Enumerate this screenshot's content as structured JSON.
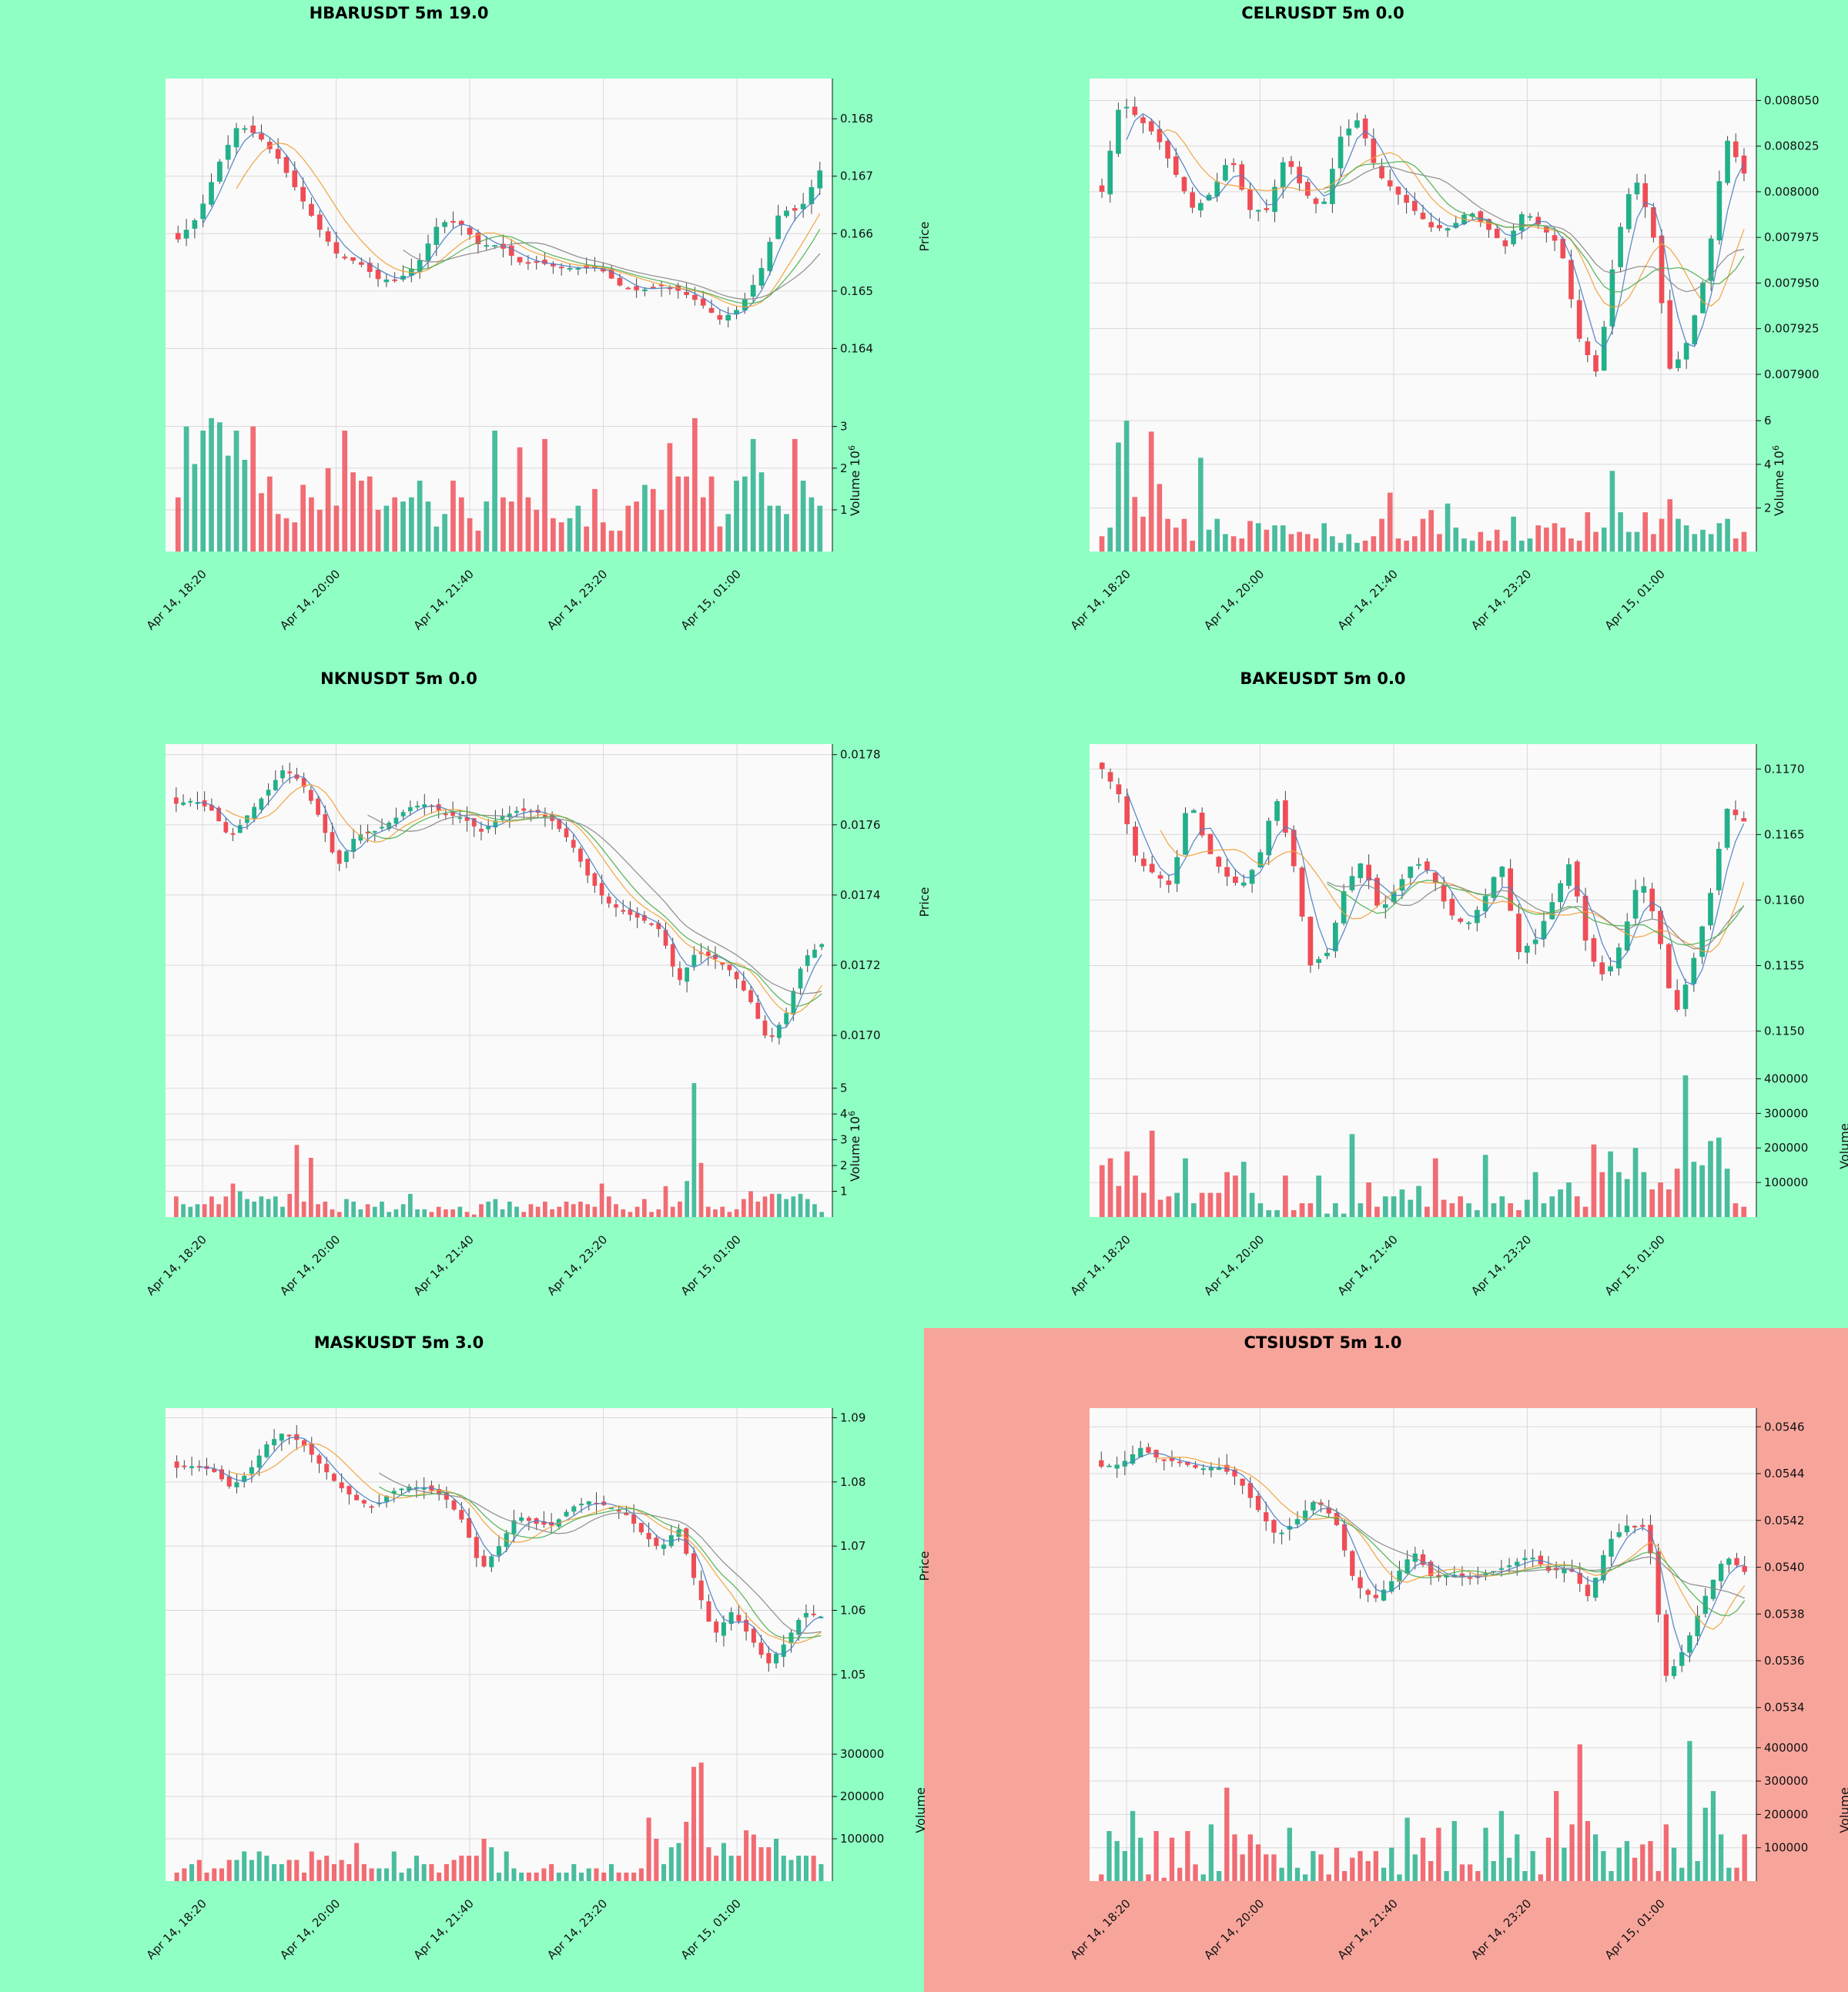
{
  "colors": {
    "page_bg": "#8fffc4",
    "highlight_bg": "#f7a59b",
    "panel_bg": "#fafafa",
    "up": "#22b08a",
    "down": "#ef4d56",
    "ma_short": "#4a7fc4",
    "ma_mid": "#f1a23b",
    "ma_long": "#888888",
    "ma_extra": "#4caf50",
    "grid": "#d9d9d9"
  },
  "x_ticks": [
    "Apr 14, 18:20",
    "Apr 14, 20:00",
    "Apr 14, 21:40",
    "Apr 14, 23:20",
    "Apr 15, 01:00"
  ],
  "labels": {
    "price": "Price",
    "volume": "Volume",
    "volume_exp": "10",
    "volume_exp_sup": "6"
  },
  "chart_data": [
    {
      "type": "candlestick",
      "title": "HBARUSDT 5m 19.0",
      "highlighted": false,
      "price_ticks": [
        "0.164",
        "0.165",
        "0.166",
        "0.167",
        "0.168"
      ],
      "price_range": [
        0.1632,
        0.1687
      ],
      "price_path": [
        0.1659,
        0.1663,
        0.1672,
        0.1679,
        0.1677,
        0.1673,
        0.1667,
        0.1661,
        0.1656,
        0.1655,
        0.1652,
        0.1652,
        0.1655,
        0.1662,
        0.1662,
        0.1658,
        0.1658,
        0.1655,
        0.1655,
        0.1654,
        0.1654,
        0.1654,
        0.1651,
        0.165,
        0.1651,
        0.165,
        0.1648,
        0.1645,
        0.1647,
        0.1653,
        0.1664,
        0.1664,
        0.1671
      ],
      "volume_ticks": [
        "1",
        "2",
        "3"
      ],
      "volume_range": [
        0,
        3.4
      ],
      "volume_scaled": true,
      "volume": [
        1.3,
        3.0,
        2.1,
        2.9,
        3.2,
        3.1,
        2.3,
        2.9,
        2.2,
        3.0,
        1.4,
        1.8,
        0.9,
        0.8,
        0.7,
        1.6,
        1.3,
        1.0,
        2.0,
        1.1,
        2.9,
        1.9,
        1.7,
        1.8,
        1.0,
        1.1,
        1.3,
        1.2,
        1.3,
        1.7,
        1.2,
        0.6,
        0.9,
        1.7,
        1.3,
        0.8,
        0.5,
        1.2,
        2.9,
        1.3,
        1.2,
        2.5,
        1.3,
        1.0,
        2.7,
        0.8,
        0.7,
        0.8,
        1.1,
        0.6,
        1.5,
        0.7,
        0.5,
        0.5,
        1.1,
        1.2,
        1.6,
        1.5,
        1.0,
        2.6,
        1.8,
        1.8,
        3.2,
        1.3,
        1.8,
        0.6,
        0.9,
        1.7,
        1.8,
        2.7,
        1.9,
        1.1,
        1.1,
        0.9,
        2.7,
        1.7,
        1.3,
        1.1
      ]
    },
    {
      "type": "candlestick",
      "title": "CELRUSDT 5m 0.0",
      "highlighted": false,
      "price_ticks": [
        "0.007900",
        "0.007925",
        "0.007950",
        "0.007975",
        "0.008000",
        "0.008025",
        "0.008050"
      ],
      "price_range": [
        0.007889,
        0.008062
      ],
      "price_path": [
        0.008,
        0.00805,
        0.00804,
        0.00803,
        0.00801,
        0.00799,
        0.008,
        0.00802,
        0.00799,
        0.00799,
        0.00802,
        0.008,
        0.00799,
        0.00803,
        0.00804,
        0.00801,
        0.008,
        0.00799,
        0.00798,
        0.00798,
        0.00799,
        0.00798,
        0.00797,
        0.00799,
        0.00798,
        0.00797,
        0.00792,
        0.0079,
        0.00797,
        0.00801,
        0.00798,
        0.0079,
        0.00792,
        0.00796,
        0.00803,
        0.00801
      ],
      "volume_ticks": [
        "2",
        "4",
        "6"
      ],
      "volume_range": [
        0,
        6.5
      ],
      "volume_scaled": true,
      "volume": [
        0.7,
        1.1,
        5.0,
        6.0,
        2.5,
        1.6,
        5.5,
        3.1,
        1.5,
        1.1,
        1.5,
        0.5,
        4.3,
        1.0,
        1.5,
        0.8,
        0.7,
        0.6,
        1.4,
        1.3,
        1.0,
        1.2,
        1.2,
        0.8,
        0.9,
        0.8,
        0.6,
        1.3,
        0.7,
        0.4,
        0.8,
        0.4,
        0.5,
        0.7,
        1.5,
        2.7,
        0.6,
        0.5,
        0.7,
        1.5,
        1.9,
        0.8,
        2.2,
        1.1,
        0.6,
        0.5,
        0.9,
        0.5,
        1.0,
        0.5,
        1.6,
        0.5,
        0.6,
        1.2,
        1.1,
        1.3,
        1.1,
        0.6,
        0.5,
        1.8,
        0.9,
        1.1,
        3.7,
        1.8,
        0.9,
        0.9,
        1.8,
        0.8,
        1.5,
        2.4,
        1.5,
        1.2,
        0.8,
        1.0,
        0.8,
        1.3,
        1.5,
        0.6,
        0.9
      ]
    },
    {
      "type": "candlestick",
      "title": "NKNUSDT 5m 0.0",
      "highlighted": false,
      "price_ticks": [
        "0.0170",
        "0.0172",
        "0.0174",
        "0.0176",
        "0.0178"
      ],
      "price_range": [
        0.01693,
        0.01783
      ],
      "price_path": [
        0.01766,
        0.01767,
        0.01764,
        0.01756,
        0.01763,
        0.01769,
        0.01776,
        0.01772,
        0.01762,
        0.01748,
        0.01757,
        0.01758,
        0.01761,
        0.01765,
        0.01766,
        0.01763,
        0.01762,
        0.01758,
        0.01762,
        0.01764,
        0.01764,
        0.01761,
        0.01755,
        0.01745,
        0.01738,
        0.01735,
        0.01733,
        0.0173,
        0.01715,
        0.01724,
        0.01722,
        0.01718,
        0.0171,
        0.01698,
        0.01706,
        0.01722,
        0.01726
      ],
      "volume_ticks": [
        "1",
        "2",
        "3",
        "4",
        "5"
      ],
      "volume_range": [
        0,
        5.5
      ],
      "volume_scaled": true,
      "volume": [
        0.8,
        0.5,
        0.4,
        0.5,
        0.5,
        0.8,
        0.5,
        0.8,
        1.3,
        1.0,
        0.7,
        0.6,
        0.8,
        0.7,
        0.8,
        0.4,
        0.9,
        2.8,
        0.6,
        2.3,
        0.5,
        0.6,
        0.3,
        0.2,
        0.7,
        0.6,
        0.3,
        0.5,
        0.4,
        0.6,
        0.2,
        0.3,
        0.5,
        0.9,
        0.3,
        0.3,
        0.2,
        0.4,
        0.3,
        0.3,
        0.4,
        0.2,
        0.1,
        0.5,
        0.6,
        0.7,
        0.3,
        0.6,
        0.4,
        0.2,
        0.5,
        0.4,
        0.6,
        0.3,
        0.4,
        0.6,
        0.5,
        0.6,
        0.5,
        0.4,
        1.3,
        0.8,
        0.5,
        0.3,
        0.2,
        0.4,
        0.7,
        0.2,
        0.3,
        1.2,
        0.4,
        0.6,
        1.4,
        5.2,
        2.1,
        0.4,
        0.3,
        0.4,
        0.2,
        0.3,
        0.7,
        1.0,
        0.6,
        0.8,
        0.9,
        0.9,
        0.7,
        0.8,
        0.9,
        0.7,
        0.5,
        0.2
      ]
    },
    {
      "type": "candlestick",
      "title": "BAKEUSDT 5m 0.0",
      "highlighted": false,
      "price_ticks": [
        "0.1150",
        "0.1155",
        "0.1160",
        "0.1165",
        "0.1170"
      ],
      "price_range": [
        0.11478,
        0.11719
      ],
      "price_path": [
        0.117,
        0.1168,
        0.1163,
        0.1162,
        0.1161,
        0.1168,
        0.1164,
        0.1162,
        0.1161,
        0.1163,
        0.1168,
        0.1163,
        0.1155,
        0.1156,
        0.1161,
        0.1163,
        0.1159,
        0.1161,
        0.1163,
        0.1162,
        0.1159,
        0.1158,
        0.116,
        0.1163,
        0.1156,
        0.1157,
        0.116,
        0.1163,
        0.1156,
        0.1154,
        0.1157,
        0.1162,
        0.1158,
        0.1151,
        0.1155,
        0.116,
        0.1167,
        0.1166
      ],
      "volume_ticks": [
        "100000",
        "200000",
        "300000",
        "400000"
      ],
      "volume_range": [
        0,
        410000
      ],
      "volume_scaled": false,
      "volume": [
        150000,
        170000,
        90000,
        190000,
        120000,
        70000,
        250000,
        50000,
        60000,
        70000,
        170000,
        40000,
        70000,
        70000,
        70000,
        130000,
        120000,
        160000,
        70000,
        40000,
        20000,
        20000,
        120000,
        20000,
        40000,
        40000,
        120000,
        10000,
        40000,
        10000,
        240000,
        40000,
        100000,
        30000,
        60000,
        60000,
        80000,
        50000,
        90000,
        30000,
        170000,
        50000,
        40000,
        60000,
        40000,
        20000,
        180000,
        40000,
        60000,
        40000,
        20000,
        50000,
        130000,
        40000,
        60000,
        80000,
        100000,
        60000,
        30000,
        210000,
        130000,
        190000,
        130000,
        110000,
        200000,
        130000,
        80000,
        100000,
        80000,
        140000,
        410000,
        160000,
        150000,
        220000,
        230000,
        140000,
        40000,
        30000
      ]
    },
    {
      "type": "candlestick",
      "title": "MASKUSDT 5m 3.0",
      "highlighted": false,
      "price_ticks": [
        "1.05",
        "1.06",
        "1.07",
        "1.08",
        "1.09"
      ],
      "price_range": [
        1.0423,
        1.0915
      ],
      "price_path": [
        1.0822,
        1.0825,
        1.0818,
        1.0791,
        1.0815,
        1.0858,
        1.0878,
        1.086,
        1.0827,
        1.0795,
        1.0772,
        1.076,
        1.0785,
        1.0793,
        1.079,
        1.0775,
        1.0738,
        1.0662,
        1.07,
        1.0748,
        1.0735,
        1.0732,
        1.076,
        1.077,
        1.0763,
        1.0752,
        1.072,
        1.0695,
        1.073,
        1.064,
        1.056,
        1.0598,
        1.056,
        1.0515,
        1.055,
        1.0597,
        1.059
      ],
      "volume_ticks": [
        "100000",
        "200000",
        "300000"
      ],
      "volume_range": [
        0,
        335000
      ],
      "volume_scaled": false,
      "volume": [
        20000,
        30000,
        40000,
        50000,
        20000,
        30000,
        30000,
        50000,
        50000,
        70000,
        50000,
        70000,
        60000,
        40000,
        40000,
        50000,
        50000,
        20000,
        70000,
        50000,
        60000,
        40000,
        50000,
        40000,
        90000,
        40000,
        30000,
        30000,
        30000,
        70000,
        20000,
        30000,
        60000,
        40000,
        40000,
        20000,
        40000,
        50000,
        60000,
        60000,
        60000,
        100000,
        80000,
        20000,
        70000,
        30000,
        20000,
        20000,
        20000,
        30000,
        40000,
        20000,
        20000,
        40000,
        20000,
        30000,
        30000,
        20000,
        40000,
        20000,
        20000,
        20000,
        30000,
        150000,
        100000,
        40000,
        80000,
        90000,
        140000,
        270000,
        280000,
        80000,
        60000,
        90000,
        60000,
        60000,
        120000,
        110000,
        80000,
        80000,
        100000,
        60000,
        50000,
        60000,
        60000,
        60000,
        40000
      ]
    },
    {
      "type": "candlestick",
      "title": "CTSIUSDT 5m 1.0",
      "highlighted": true,
      "price_ticks": [
        "0.0534",
        "0.0536",
        "0.0538",
        "0.0540",
        "0.0542",
        "0.0544",
        "0.0546"
      ],
      "price_range": [
        0.05333,
        0.05468
      ],
      "price_path": [
        0.05443,
        0.05444,
        0.05451,
        0.05446,
        0.05445,
        0.05442,
        0.05443,
        0.05438,
        0.05425,
        0.05413,
        0.0542,
        0.05429,
        0.0542,
        0.05393,
        0.05386,
        0.05395,
        0.05407,
        0.05395,
        0.05397,
        0.05395,
        0.05398,
        0.05401,
        0.05405,
        0.05398,
        0.054,
        0.05387,
        0.05411,
        0.05418,
        0.05417,
        0.05352,
        0.05367,
        0.05388,
        0.05405,
        0.05398
      ],
      "volume_ticks": [
        "100000",
        "200000",
        "300000",
        "400000"
      ],
      "volume_range": [
        0,
        425000
      ],
      "volume_scaled": false,
      "volume": [
        20000,
        150000,
        120000,
        90000,
        210000,
        130000,
        20000,
        150000,
        10000,
        130000,
        40000,
        150000,
        50000,
        20000,
        170000,
        30000,
        280000,
        140000,
        80000,
        140000,
        110000,
        80000,
        80000,
        40000,
        160000,
        40000,
        20000,
        90000,
        80000,
        20000,
        100000,
        30000,
        70000,
        90000,
        60000,
        90000,
        40000,
        100000,
        20000,
        190000,
        80000,
        130000,
        60000,
        160000,
        30000,
        180000,
        50000,
        50000,
        30000,
        160000,
        60000,
        210000,
        70000,
        140000,
        30000,
        90000,
        20000,
        130000,
        270000,
        100000,
        170000,
        410000,
        180000,
        140000,
        90000,
        30000,
        100000,
        120000,
        70000,
        110000,
        120000,
        30000,
        170000,
        100000,
        40000,
        420000,
        60000,
        220000,
        270000,
        140000,
        40000,
        40000,
        140000
      ]
    }
  ]
}
